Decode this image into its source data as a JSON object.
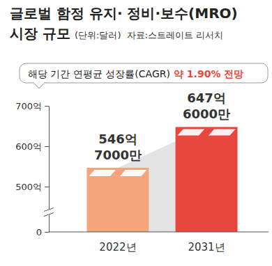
{
  "chart_data": {
    "type": "bar",
    "title": "글로벌 함정 유지· 정비·보수(MRO)\n시장 규모",
    "subtitle": "(단위:달러)",
    "source": "자료:스트레이트 리서치",
    "annotation": {
      "prefix": "해당 기간 연평균 성장률(CAGR)",
      "highlight": "약 1.90%",
      "suffix": "전망"
    },
    "categories": [
      "2022년",
      "2031년"
    ],
    "values": [
      546.7,
      647.6
    ],
    "value_labels": [
      "546억 7000만",
      "647억 6000만"
    ],
    "colors": [
      "#f5a57b",
      "#e8473d"
    ],
    "ylim": [
      0,
      700
    ],
    "yticks": [
      0,
      {
        "value": 500,
        "label": "500억"
      },
      {
        "value": 600,
        "label": "600억"
      },
      {
        "value": 700,
        "label": "700억"
      }
    ],
    "data_labels": true,
    "grid": false
  }
}
